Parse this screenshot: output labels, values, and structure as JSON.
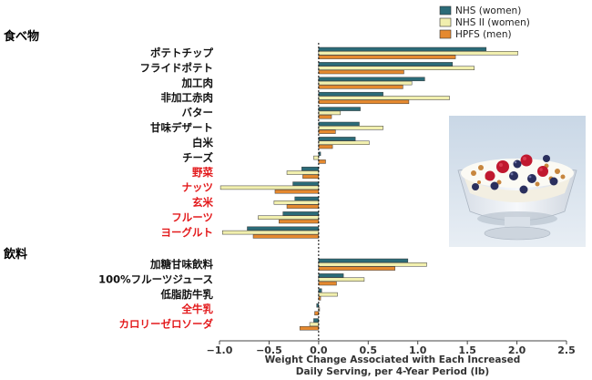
{
  "colors": {
    "nhs_women": "#2b6b78",
    "nhs2_women": "#f1efae",
    "hpfs_men": "#e5892f",
    "highlight_red": "#e31a1c",
    "label_black": "#111111"
  },
  "photo": {
    "icon": "yogurt-berry-bowl-photo"
  },
  "chart_data": {
    "type": "bar",
    "orientation": "horizontal",
    "xlabel_line1": "Weight Change Associated with Each Increased",
    "xlabel_line2": "Daily Serving, per 4-Year Period (lb)",
    "xlim": [
      -1.0,
      2.5
    ],
    "xticks": [
      "−1.0",
      "−0.5",
      "0.0",
      "0.5",
      "1.0",
      "1.5",
      "2.0",
      "2.5"
    ],
    "xtick_values": [
      -1.0,
      -0.5,
      0.0,
      0.5,
      1.0,
      1.5,
      2.0,
      2.5
    ],
    "legend_position": "top-right",
    "series": [
      {
        "key": "nhs",
        "name": "NHS (women)"
      },
      {
        "key": "nhs2",
        "name": "NHS II (women)"
      },
      {
        "key": "hpfs",
        "name": "HPFS (men)"
      }
    ],
    "sections": [
      {
        "title": "食べ物",
        "items": [
          {
            "label": "ポテトチップ",
            "highlight": false,
            "values": [
              1.69,
              2.01,
              1.38
            ]
          },
          {
            "label": "フライドポテト",
            "highlight": false,
            "values": [
              1.35,
              1.57,
              0.86
            ]
          },
          {
            "label": "加工肉",
            "highlight": false,
            "values": [
              1.07,
              0.94,
              0.85
            ]
          },
          {
            "label": "非加工赤肉",
            "highlight": false,
            "values": [
              0.65,
              1.32,
              0.91
            ]
          },
          {
            "label": "バター",
            "highlight": false,
            "values": [
              0.42,
              0.22,
              0.13
            ]
          },
          {
            "label": "甘味デザート",
            "highlight": false,
            "values": [
              0.41,
              0.65,
              0.17
            ]
          },
          {
            "label": "白米",
            "highlight": false,
            "values": [
              0.37,
              0.51,
              0.14
            ]
          },
          {
            "label": "チーズ",
            "highlight": false,
            "values": [
              0.02,
              -0.05,
              0.07
            ]
          },
          {
            "label": "野菜",
            "highlight": true,
            "values": [
              -0.17,
              -0.32,
              -0.16
            ]
          },
          {
            "label": "ナッツ",
            "highlight": true,
            "values": [
              -0.26,
              -0.99,
              -0.44
            ]
          },
          {
            "label": "玄米",
            "highlight": true,
            "values": [
              -0.24,
              -0.45,
              -0.32
            ]
          },
          {
            "label": "フルーツ",
            "highlight": true,
            "values": [
              -0.36,
              -0.61,
              -0.4
            ]
          },
          {
            "label": "ヨーグルト",
            "highlight": true,
            "values": [
              -0.72,
              -0.97,
              -0.66
            ]
          }
        ]
      },
      {
        "title": "飲料",
        "items": [
          {
            "label": "加糖甘味飲料",
            "highlight": false,
            "values": [
              0.9,
              1.09,
              0.77
            ]
          },
          {
            "label": "100%フルーツジュース",
            "highlight": false,
            "values": [
              0.25,
              0.46,
              0.18
            ]
          },
          {
            "label": "低脂肪牛乳",
            "highlight": false,
            "values": [
              0.03,
              0.19,
              0.02
            ]
          },
          {
            "label": "全牛乳",
            "highlight": true,
            "values": [
              -0.02,
              0.01,
              -0.04
            ]
          },
          {
            "label": "カロリーゼロソーダ",
            "highlight": true,
            "values": [
              -0.05,
              -0.09,
              -0.19
            ]
          }
        ]
      }
    ]
  }
}
